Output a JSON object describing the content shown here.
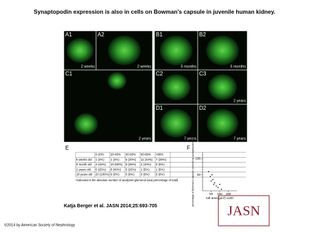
{
  "title": "Synaptopodin expression is also in cells on Bowman’s capsule in juvenile human kidney.",
  "panels": [
    {
      "label": "A1",
      "caption": "2 weeks"
    },
    {
      "label": "A2",
      "caption": "2 weeks"
    },
    {
      "label": "B1",
      "caption": "5 months"
    },
    {
      "label": "B2",
      "caption": "5 months"
    },
    {
      "label": "C1",
      "caption": "2 years"
    },
    {
      "label": "C2"
    },
    {
      "label": "C3",
      "caption": "2 years"
    },
    {
      "label": "D1",
      "caption": "7 years"
    },
    {
      "label": "D2",
      "caption": "7 years"
    }
  ],
  "table_e": {
    "label": "E",
    "header": [
      "0-20%",
      "20-40%",
      "40-60%",
      "60-80%",
      ">80%"
    ],
    "rows": [
      [
        "5 weeks old",
        "1 (4%)",
        "1 (4%)",
        "5 (20%)",
        "11 (44%)",
        "7 (28%)"
      ],
      [
        "5 month old",
        "3 (15%)",
        "10 (50%)",
        "5 (25%)",
        "2 (10%)",
        "0 (0%)"
      ],
      [
        "2 years old",
        "5 (25%)",
        "8 (40%)",
        "5 (25%)",
        "1 (5%)",
        "1 (5%)"
      ],
      [
        "18 years old",
        "20 (100%)",
        "0 (0%)",
        "0 (0%)",
        "0 (0%)",
        "0 (0%)"
      ]
    ],
    "footnote": "*indicated is the absolute number of analyzed glomeruli (and percentage of total)"
  },
  "panel_f": {
    "label": "F",
    "type": "scatter",
    "y_label": "percentage of Bowman’s capsule covered by synaptopodin cells",
    "x_label": "tuft area (µm²) x100",
    "x": [
      35,
      45,
      50,
      55,
      60,
      65,
      70,
      80,
      90,
      100,
      110
    ],
    "y": [
      60,
      45,
      30,
      50,
      35,
      20,
      25,
      15,
      10,
      20,
      5
    ],
    "xlim": [
      0,
      200
    ],
    "ylim": [
      0,
      120
    ],
    "xticks": [
      50,
      100,
      150
    ],
    "yticks": [
      50,
      100
    ],
    "color": "#333333"
  },
  "citation": "Katja Berger et al. JASN 2014;25:693-705",
  "copyright": "©2014 by American Society of Nephrology",
  "logo": "JASN"
}
